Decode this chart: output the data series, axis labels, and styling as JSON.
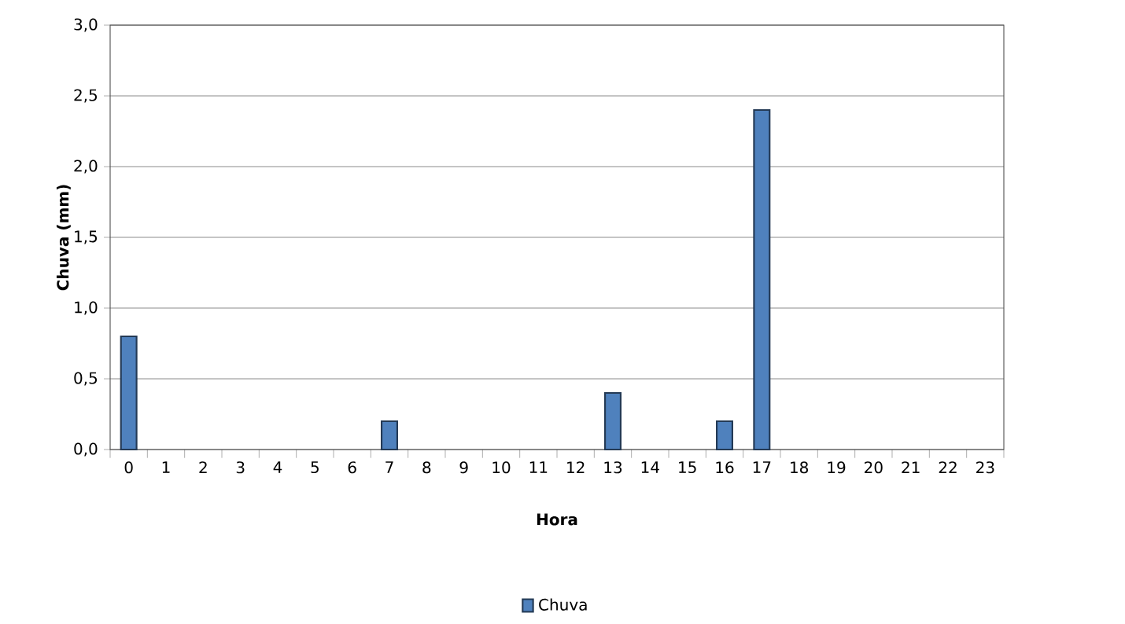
{
  "chart_data": {
    "type": "bar",
    "xlabel": "Hora",
    "ylabel": "Chuva (mm)",
    "categories": [
      "0",
      "1",
      "2",
      "3",
      "4",
      "5",
      "6",
      "7",
      "8",
      "9",
      "10",
      "11",
      "12",
      "13",
      "14",
      "15",
      "16",
      "17",
      "18",
      "19",
      "20",
      "21",
      "22",
      "23"
    ],
    "series": [
      {
        "name": "Chuva",
        "color": "#4f81bd",
        "values": [
          0.8,
          0,
          0,
          0,
          0,
          0,
          0,
          0.2,
          0,
          0,
          0,
          0,
          0,
          0.4,
          0,
          0,
          0.2,
          2.4,
          0,
          0,
          0,
          0,
          0,
          0
        ]
      }
    ],
    "ylim": [
      0,
      3
    ],
    "yticks": [
      {
        "value": 0,
        "label": "0,0"
      },
      {
        "value": 0.5,
        "label": "0,5"
      },
      {
        "value": 1,
        "label": "1,0"
      },
      {
        "value": 1.5,
        "label": "1,5"
      },
      {
        "value": 2,
        "label": "2,0"
      },
      {
        "value": 2.5,
        "label": "2,5"
      },
      {
        "value": 3,
        "label": "3,0"
      }
    ],
    "grid": "y",
    "legend": "bottom"
  }
}
